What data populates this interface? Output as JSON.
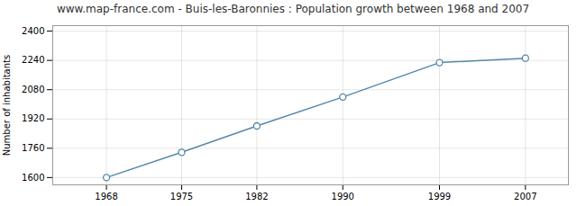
{
  "chart_data": {
    "type": "line",
    "title": "www.map-france.com - Buis-les-Baronnies : Population growth between 1968 and 2007",
    "x": [
      1968,
      1975,
      1982,
      1990,
      1999,
      2007
    ],
    "values": [
      1600,
      1738,
      1882,
      2040,
      2228,
      2252
    ],
    "ylabel": "Number of inhabitants",
    "color": "#5588aa",
    "marker": "circle",
    "xlim": [
      1963,
      2011
    ],
    "xticks": [
      1968,
      1975,
      1982,
      1990,
      1999,
      2007
    ],
    "ylim": [
      1560,
      2430
    ],
    "yticks": [
      1600,
      1760,
      1920,
      2080,
      2240,
      2400
    ],
    "grid": true
  }
}
